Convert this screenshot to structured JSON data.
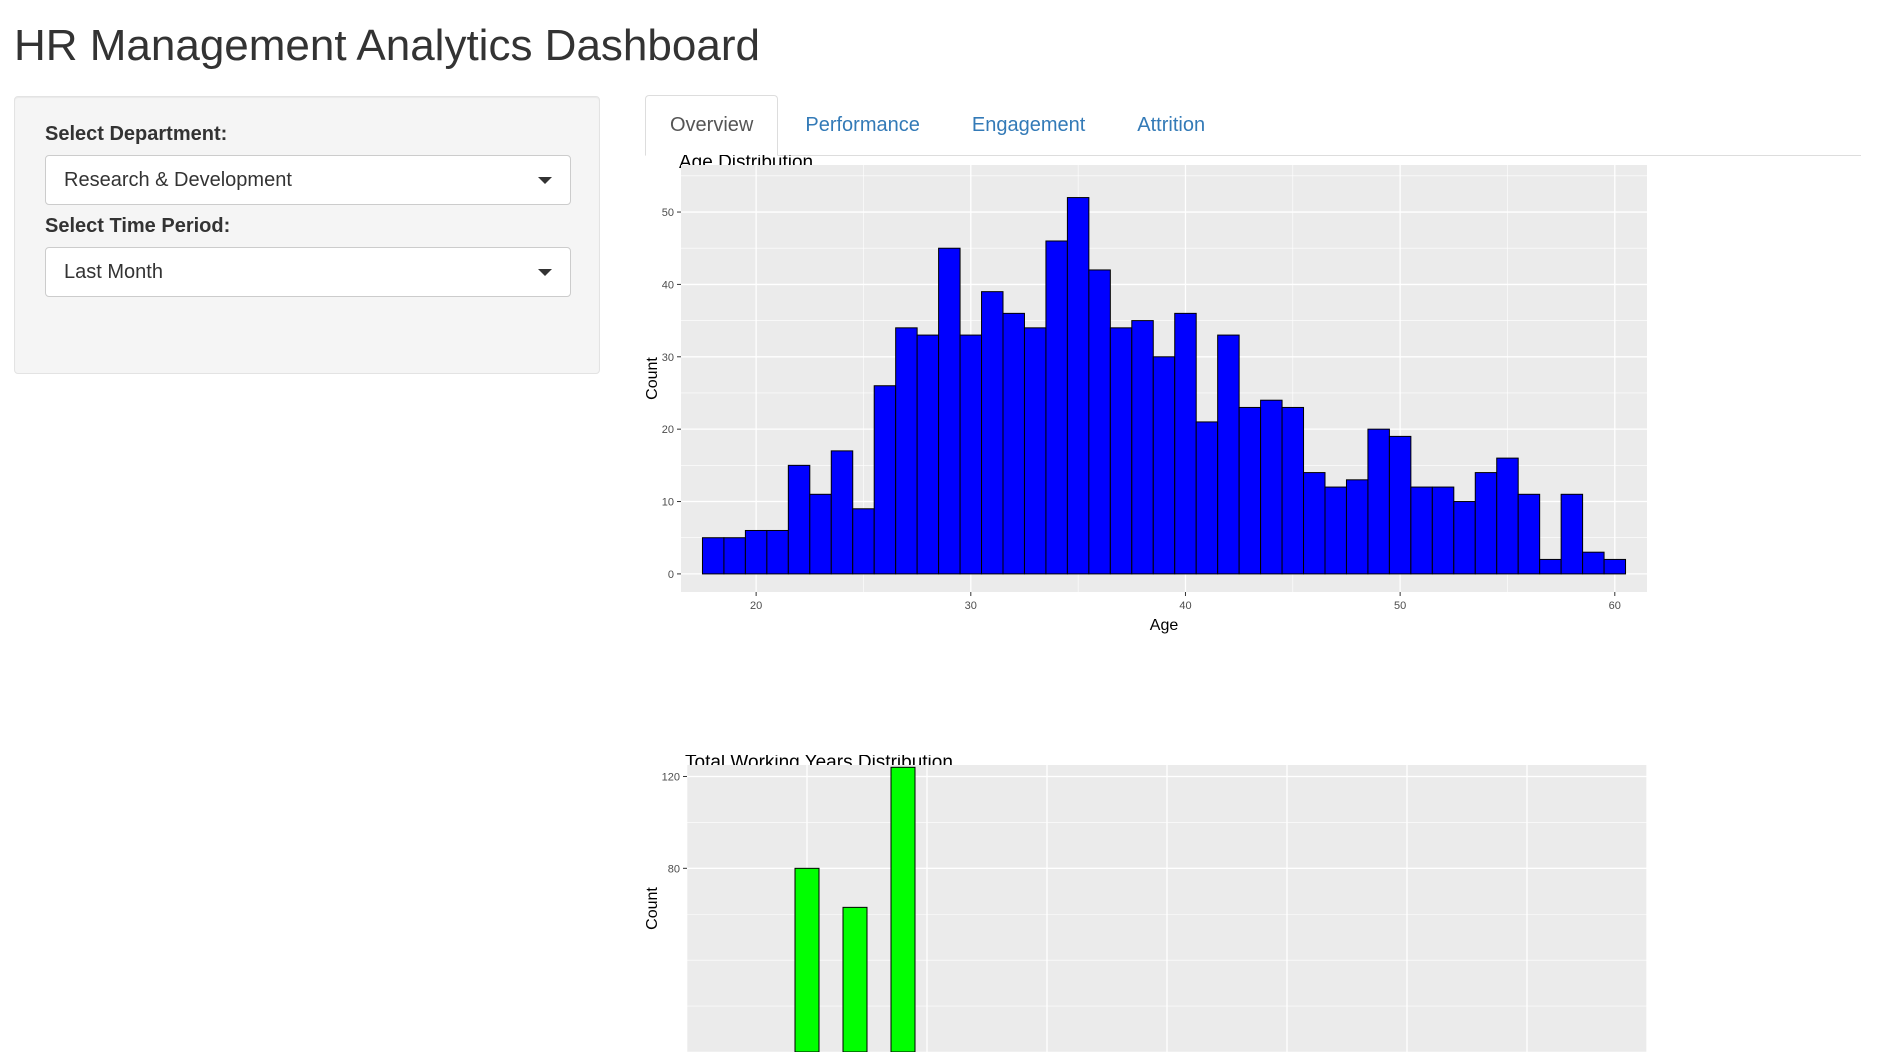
{
  "page": {
    "title": "HR Management Analytics Dashboard"
  },
  "sidebar": {
    "department": {
      "label": "Select Department:",
      "value": "Research & Development"
    },
    "period": {
      "label": "Select Time Period:",
      "value": "Last Month"
    }
  },
  "tabs": [
    {
      "label": "Overview",
      "active": true
    },
    {
      "label": "Performance",
      "active": false
    },
    {
      "label": "Engagement",
      "active": false
    },
    {
      "label": "Attrition",
      "active": false
    }
  ],
  "colors": {
    "panel_bg": "#ebebeb",
    "grid": "#ffffff",
    "age_bar": "#0000ff",
    "working_years_bar": "#00ff00",
    "bar_outline": "#000000",
    "tab_link": "#337ab7"
  },
  "chart_data": [
    {
      "type": "bar",
      "title": "Age Distribution",
      "xlabel": "Age",
      "ylabel": "Count",
      "bin_width": 1,
      "xlim": [
        16.5,
        61.5
      ],
      "ylim": [
        -2.5,
        56.5
      ],
      "x_ticks": [
        20,
        30,
        40,
        50,
        60
      ],
      "y_ticks": [
        0,
        10,
        20,
        30,
        40,
        50
      ],
      "x": [
        18,
        19,
        20,
        21,
        22,
        23,
        24,
        25,
        26,
        27,
        28,
        29,
        30,
        31,
        32,
        33,
        34,
        35,
        36,
        37,
        38,
        39,
        40,
        41,
        42,
        43,
        44,
        45,
        46,
        47,
        48,
        49,
        50,
        51,
        52,
        53,
        54,
        55,
        56,
        57,
        58,
        59,
        60
      ],
      "values": [
        5,
        5,
        6,
        6,
        15,
        11,
        17,
        9,
        26,
        34,
        33,
        45,
        33,
        39,
        36,
        34,
        46,
        52,
        42,
        34,
        35,
        30,
        36,
        21,
        33,
        23,
        24,
        23,
        14,
        12,
        13,
        20,
        19,
        12,
        12,
        10,
        14,
        16,
        11,
        2,
        11,
        3,
        2
      ],
      "grid": true,
      "legend": "none"
    },
    {
      "type": "bar",
      "title": "Total Working Years Distribution",
      "xlabel": "",
      "ylabel": "Count",
      "bin_width": 1,
      "xlim": [
        0,
        40
      ],
      "ylim": [
        0,
        125
      ],
      "y_ticks": [
        80,
        120
      ],
      "x": [
        5,
        7,
        9
      ],
      "values": [
        80,
        63,
        124
      ],
      "grid": true,
      "legend": "none"
    }
  ]
}
